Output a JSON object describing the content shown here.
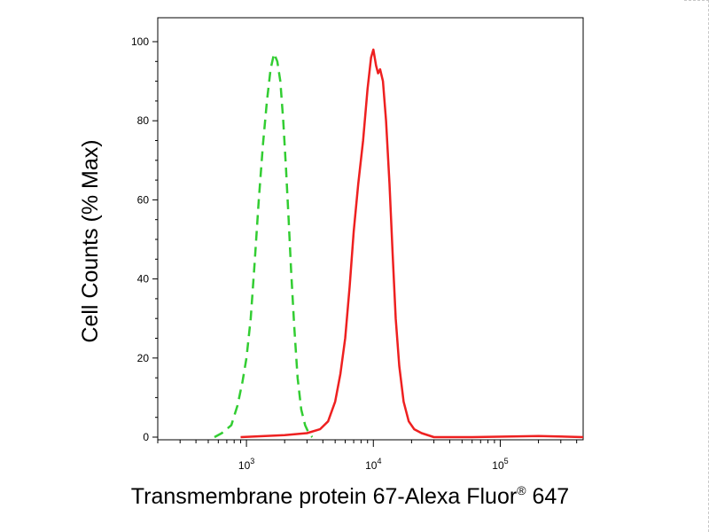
{
  "chart_data": {
    "type": "line",
    "xlabel": "Transmembrane protein 67-Alexa Fluor",
    "xlabel_sup": "®",
    "xlabel_tail": " 647",
    "ylabel": "Cell Counts (% Max)",
    "x_scale": "log",
    "xlim": [
      200,
      450000
    ],
    "ylim": [
      0,
      100
    ],
    "y_ticks": [
      0,
      20,
      40,
      60,
      80,
      100
    ],
    "y_tick_labels": [
      "0",
      "20",
      "40",
      "60",
      "80",
      "100"
    ],
    "x_major_ticks": [
      {
        "value": 1000,
        "base": "10",
        "exp": "3"
      },
      {
        "value": 10000,
        "base": "10",
        "exp": "4"
      },
      {
        "value": 100000,
        "base": "10",
        "exp": "5"
      }
    ],
    "grid": false,
    "legend": "none",
    "series": [
      {
        "color": "#32cd32",
        "dash": "dashed",
        "points": [
          [
            560,
            0
          ],
          [
            640,
            1
          ],
          [
            760,
            3
          ],
          [
            850,
            8
          ],
          [
            930,
            14
          ],
          [
            1000,
            20
          ],
          [
            1080,
            30
          ],
          [
            1160,
            44
          ],
          [
            1250,
            60
          ],
          [
            1350,
            74
          ],
          [
            1450,
            85
          ],
          [
            1550,
            93
          ],
          [
            1650,
            97
          ],
          [
            1750,
            95
          ],
          [
            1850,
            90
          ],
          [
            1950,
            80
          ],
          [
            2050,
            68
          ],
          [
            2150,
            55
          ],
          [
            2250,
            42
          ],
          [
            2380,
            28
          ],
          [
            2530,
            15
          ],
          [
            2700,
            7
          ],
          [
            2900,
            3
          ],
          [
            3100,
            1
          ],
          [
            3300,
            0
          ]
        ]
      },
      {
        "color": "#ee2020",
        "dash": "solid",
        "points": [
          [
            900,
            0
          ],
          [
            2000,
            0.5
          ],
          [
            3000,
            1
          ],
          [
            3800,
            2
          ],
          [
            4400,
            4
          ],
          [
            5000,
            9
          ],
          [
            5500,
            16
          ],
          [
            6000,
            25
          ],
          [
            6500,
            38
          ],
          [
            7000,
            52
          ],
          [
            7600,
            64
          ],
          [
            8300,
            75
          ],
          [
            9000,
            88
          ],
          [
            9600,
            96
          ],
          [
            10000,
            98
          ],
          [
            10500,
            94
          ],
          [
            10900,
            92
          ],
          [
            11300,
            93
          ],
          [
            11900,
            90
          ],
          [
            12600,
            80
          ],
          [
            13400,
            64
          ],
          [
            14200,
            46
          ],
          [
            15000,
            30
          ],
          [
            16000,
            18
          ],
          [
            17300,
            9
          ],
          [
            19000,
            4
          ],
          [
            21000,
            2
          ],
          [
            24000,
            1
          ],
          [
            30000,
            0
          ],
          [
            60000,
            0
          ],
          [
            200000,
            0.3
          ],
          [
            450000,
            0
          ]
        ]
      }
    ]
  }
}
